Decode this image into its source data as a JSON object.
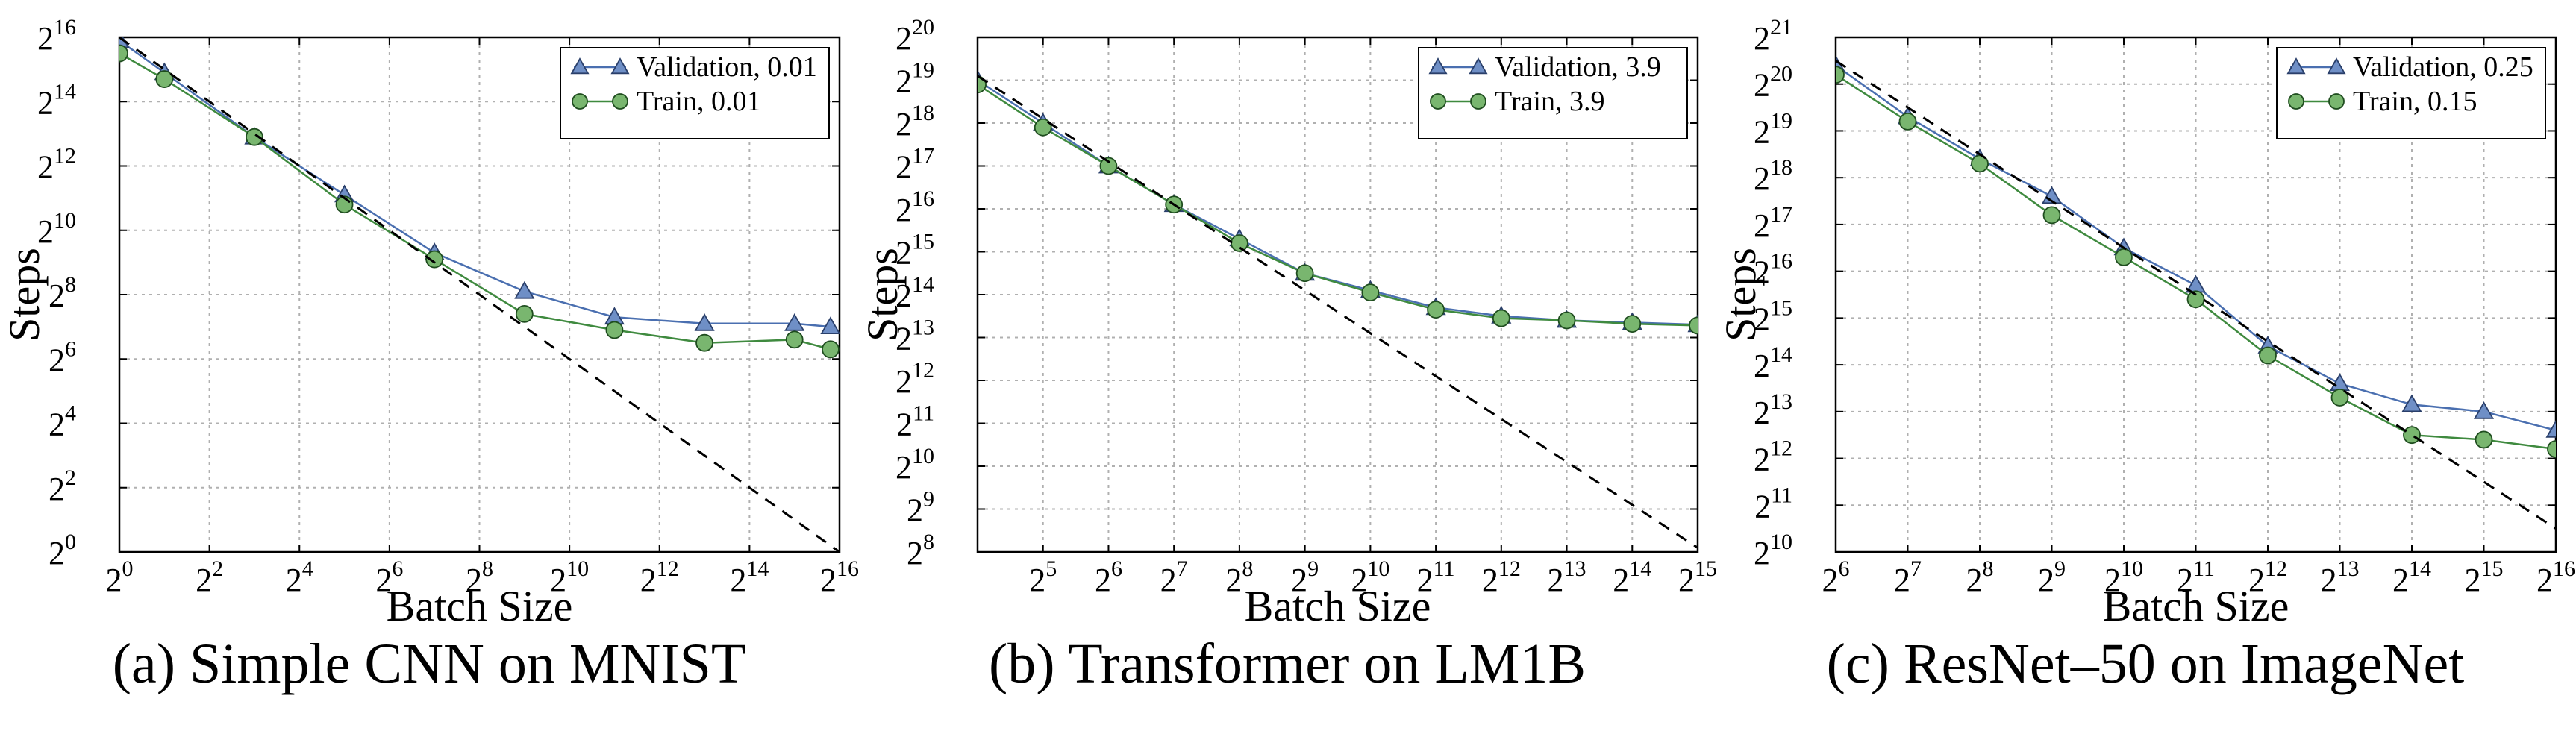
{
  "colors": {
    "validation": "#4a6fb0",
    "validation_fill": "#6f8fc6",
    "train": "#3f8a3f",
    "train_fill": "#79b66f",
    "reference_line": "#000000",
    "grid": "#b0b0b0"
  },
  "chart_data": [
    {
      "type": "line",
      "caption": "(a) Simple CNN on MNIST",
      "xlabel": "Batch Size",
      "ylabel": "Steps",
      "x_scale": "log2",
      "y_scale": "log2",
      "xlim_log2": [
        0,
        16
      ],
      "ylim_log2": [
        0,
        16
      ],
      "xticks_log2": [
        0,
        2,
        4,
        6,
        8,
        10,
        12,
        14,
        16
      ],
      "yticks_log2": [
        0,
        2,
        4,
        6,
        8,
        10,
        12,
        14,
        16
      ],
      "grid": true,
      "legend_position": "top-right",
      "series": [
        {
          "name": "Validation, 0.01",
          "marker": "triangle",
          "x_log2": [
            0,
            1,
            3,
            5,
            7,
            9,
            11,
            13,
            15,
            15.8
          ],
          "y_log2": [
            15.9,
            14.9,
            12.9,
            11.1,
            9.3,
            8.1,
            7.3,
            7.1,
            7.1,
            7.0
          ]
        },
        {
          "name": "Train, 0.01",
          "marker": "circle",
          "x_log2": [
            0,
            1,
            3,
            5,
            7,
            9,
            11,
            13,
            15,
            15.8
          ],
          "y_log2": [
            15.5,
            14.7,
            12.9,
            10.8,
            9.1,
            7.4,
            6.9,
            6.5,
            6.6,
            6.3
          ]
        },
        {
          "name": "",
          "style": "dashed",
          "x_log2": [
            0,
            16
          ],
          "y_log2": [
            16,
            0
          ]
        }
      ]
    },
    {
      "type": "line",
      "caption": "(b) Transformer on LM1B",
      "xlabel": "Batch Size",
      "ylabel": "Steps",
      "x_scale": "log2",
      "y_scale": "log2",
      "xlim_log2": [
        4,
        15
      ],
      "ylim_log2": [
        8,
        20
      ],
      "xticks_log2": [
        5,
        6,
        7,
        8,
        9,
        10,
        11,
        12,
        13,
        14,
        15
      ],
      "yticks_log2": [
        8,
        9,
        10,
        11,
        12,
        13,
        14,
        15,
        16,
        17,
        18,
        19,
        20
      ],
      "grid": true,
      "legend_position": "top-right",
      "series": [
        {
          "name": "Validation, 3.9",
          "marker": "triangle",
          "x_log2": [
            4,
            5,
            6,
            7,
            8,
            9,
            10,
            11,
            12,
            13,
            14,
            15
          ],
          "y_log2": [
            19.0,
            18.0,
            17.0,
            16.1,
            15.3,
            14.5,
            14.1,
            13.7,
            13.5,
            13.4,
            13.35,
            13.3
          ]
        },
        {
          "name": "Train, 3.9",
          "marker": "circle",
          "x_log2": [
            4,
            5,
            6,
            7,
            8,
            9,
            10,
            11,
            12,
            13,
            14,
            15
          ],
          "y_log2": [
            18.9,
            17.9,
            17.0,
            16.1,
            15.2,
            14.5,
            14.05,
            13.65,
            13.45,
            13.4,
            13.32,
            13.28
          ]
        },
        {
          "name": "",
          "style": "dashed",
          "x_log2": [
            4,
            15
          ],
          "y_log2": [
            19.1,
            8.1
          ]
        }
      ]
    },
    {
      "type": "line",
      "caption": "(c) ResNet–50 on ImageNet",
      "xlabel": "Batch Size",
      "ylabel": "Steps",
      "x_scale": "log2",
      "y_scale": "log2",
      "xlim_log2": [
        6,
        16
      ],
      "ylim_log2": [
        10,
        21
      ],
      "xticks_log2": [
        6,
        7,
        8,
        9,
        10,
        11,
        12,
        13,
        14,
        15,
        16
      ],
      "yticks_log2": [
        10,
        11,
        12,
        13,
        14,
        15,
        16,
        17,
        18,
        19,
        20,
        21
      ],
      "grid": true,
      "legend_position": "top-right",
      "series": [
        {
          "name": "Validation, 0.25",
          "marker": "triangle",
          "x_log2": [
            6,
            7,
            8,
            9,
            10,
            11,
            12,
            13,
            14,
            15,
            16
          ],
          "y_log2": [
            20.4,
            19.3,
            18.4,
            17.6,
            16.5,
            15.7,
            14.4,
            13.6,
            13.15,
            13.0,
            12.6
          ]
        },
        {
          "name": "Train, 0.15",
          "marker": "circle",
          "x_log2": [
            6,
            7,
            8,
            9,
            10,
            11,
            12,
            13,
            14,
            15,
            16
          ],
          "y_log2": [
            20.2,
            19.2,
            18.3,
            17.2,
            16.3,
            15.4,
            14.2,
            13.3,
            12.5,
            12.4,
            12.2
          ]
        },
        {
          "name": "",
          "style": "dashed",
          "x_log2": [
            6,
            16
          ],
          "y_log2": [
            20.5,
            10.5
          ]
        }
      ]
    }
  ]
}
